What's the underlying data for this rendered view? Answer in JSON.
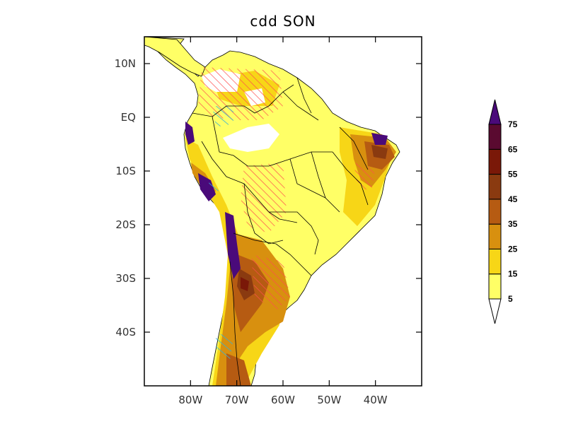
{
  "title": "cdd SON",
  "x_axis": {
    "ticks": [
      {
        "label": "80W",
        "lon": -80
      },
      {
        "label": "70W",
        "lon": -70
      },
      {
        "label": "60W",
        "lon": -60
      },
      {
        "label": "50W",
        "lon": -50
      },
      {
        "label": "40W",
        "lon": -40
      }
    ],
    "range": [
      -90,
      -30
    ]
  },
  "y_axis": {
    "ticks": [
      {
        "label": "10N",
        "lat": 10
      },
      {
        "label": "EQ",
        "lat": 0
      },
      {
        "label": "10S",
        "lat": -10
      },
      {
        "label": "20S",
        "lat": -20
      },
      {
        "label": "30S",
        "lat": -30
      },
      {
        "label": "40S",
        "lat": -40
      }
    ],
    "range": [
      -50,
      15
    ]
  },
  "colorbar": {
    "levels": [
      "5",
      "15",
      "25",
      "35",
      "45",
      "55",
      "65",
      "75"
    ],
    "colors": [
      "#ffff66",
      "#f7d617",
      "#d8900f",
      "#b65b12",
      "#8a3a10",
      "#7a1808",
      "#5a0a30",
      "#4a0a7a"
    ],
    "under_color": "#ffffff",
    "over_color": "#4a0a7a"
  },
  "colors": {
    "ocean": "#ffffff",
    "land_base": "#ffff66",
    "hatch_red": "#ff4d4d",
    "hatch_cyan": "#33b0d8"
  }
}
